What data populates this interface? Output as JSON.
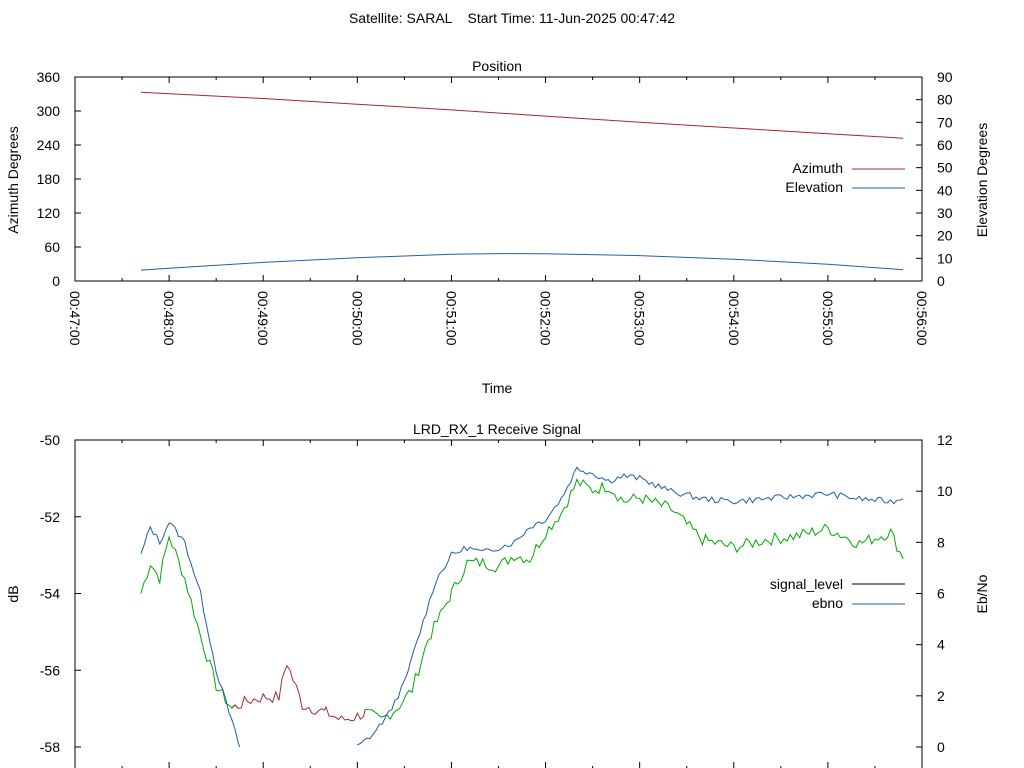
{
  "figure": {
    "title": "Satellite: SARAL    Start Time: 11-Jun-2025 00:47:42"
  },
  "colors": {
    "azimuth": "#a52a2a",
    "elevation": "#1f5fa8",
    "signal_level": "#000000",
    "ebno": "#1f5fa8",
    "signal_red": "#a52a2a",
    "signal_green": "#00aa00"
  },
  "chart_data": [
    {
      "type": "line",
      "title": "Position",
      "xlabel": "Time",
      "ylabel": "Azimuth Degrees",
      "y2label": "Elevation Degrees",
      "xlim": [
        "00:47:00",
        "00:56:00"
      ],
      "ylim": [
        0,
        360
      ],
      "y2lim": [
        0,
        90
      ],
      "x_ticks": [
        "00:47:00",
        "00:48:00",
        "00:49:00",
        "00:50:00",
        "00:51:00",
        "00:52:00",
        "00:53:00",
        "00:54:00",
        "00:55:00",
        "00:56:00"
      ],
      "y_ticks": [
        "0",
        "60",
        "120",
        "180",
        "240",
        "300",
        "360"
      ],
      "y2_ticks": [
        "0",
        "10",
        "20",
        "30",
        "40",
        "50",
        "60",
        "70",
        "80",
        "90"
      ],
      "legend_position": "right",
      "grid": false,
      "series": [
        {
          "name": "Azimuth",
          "axis": "y",
          "x": [
            "00:47:42",
            "00:49:00",
            "00:50:00",
            "00:51:00",
            "00:52:00",
            "00:53:00",
            "00:54:00",
            "00:55:00",
            "00:55:48"
          ],
          "values": [
            333,
            322,
            312,
            302,
            291,
            280,
            270,
            260,
            252
          ]
        },
        {
          "name": "Elevation",
          "axis": "y2",
          "x": [
            "00:47:42",
            "00:48:00",
            "00:49:00",
            "00:50:00",
            "00:51:00",
            "00:51:30",
            "00:52:00",
            "00:53:00",
            "00:54:00",
            "00:55:00",
            "00:55:48"
          ],
          "values": [
            4.8,
            5.6,
            8.2,
            10.3,
            11.8,
            12.1,
            12.0,
            11.2,
            9.6,
            7.4,
            5.0
          ]
        }
      ]
    },
    {
      "type": "line",
      "title": "LRD_RX_1 Receive Signal",
      "xlabel": "",
      "ylabel": "dB",
      "y2label": "Eb/No",
      "xlim": [
        "00:47:00",
        "00:56:00"
      ],
      "ylim": [
        -58,
        -50
      ],
      "y2lim": [
        0,
        12
      ],
      "y_ticks": [
        "-50",
        "-52",
        "-54",
        "-56",
        "-58"
      ],
      "y2_ticks": [
        "0",
        "2",
        "4",
        "6",
        "8",
        "10",
        "12"
      ],
      "legend_position": "right",
      "grid": false,
      "series": [
        {
          "name": "signal_level",
          "axis": "y",
          "x": [
            "00:47:42",
            "00:47:48",
            "00:47:54",
            "00:48:00",
            "00:48:10",
            "00:48:20",
            "00:48:30",
            "00:48:40",
            "00:48:50",
            "00:49:00",
            "00:49:10",
            "00:49:15",
            "00:49:25",
            "00:49:40",
            "00:49:50",
            "00:50:00",
            "00:50:05",
            "00:50:15",
            "00:50:25",
            "00:50:35",
            "00:50:45",
            "00:51:00",
            "00:51:10",
            "00:51:20",
            "00:51:30",
            "00:51:40",
            "00:51:50",
            "00:52:00",
            "00:52:10",
            "00:52:20",
            "00:52:30",
            "00:52:40",
            "00:52:50",
            "00:53:00",
            "00:53:20",
            "00:53:40",
            "00:54:00",
            "00:54:20",
            "00:54:40",
            "00:55:00",
            "00:55:20",
            "00:55:40",
            "00:55:48"
          ],
          "values": [
            -54.0,
            -53.2,
            -53.6,
            -52.5,
            -53.6,
            -55.1,
            -56.4,
            -57.0,
            -56.8,
            -56.7,
            -56.7,
            -55.8,
            -56.9,
            -57.1,
            -57.3,
            -57.2,
            -57.1,
            -57.3,
            -57.0,
            -56.5,
            -55.2,
            -54.0,
            -53.2,
            -53.2,
            -53.3,
            -53.0,
            -53.1,
            -52.4,
            -51.9,
            -51.1,
            -51.3,
            -51.2,
            -51.6,
            -51.5,
            -51.8,
            -52.6,
            -52.8,
            -52.6,
            -52.5,
            -52.3,
            -52.7,
            -52.4,
            -53.1
          ]
        },
        {
          "name": "ebno",
          "axis": "y2",
          "x": [
            "00:47:42",
            "00:47:48",
            "00:47:54",
            "00:48:00",
            "00:48:10",
            "00:48:20",
            "00:48:30",
            "00:48:40",
            "00:48:45",
            "00:50:00",
            "00:50:10",
            "00:50:20",
            "00:50:30",
            "00:50:40",
            "00:50:50",
            "00:51:00",
            "00:51:10",
            "00:51:20",
            "00:51:30",
            "00:51:40",
            "00:51:50",
            "00:52:00",
            "00:52:10",
            "00:52:20",
            "00:52:30",
            "00:52:40",
            "00:52:50",
            "00:53:00",
            "00:53:20",
            "00:53:40",
            "00:54:00",
            "00:54:20",
            "00:54:40",
            "00:55:00",
            "00:55:20",
            "00:55:40",
            "00:55:48"
          ],
          "values": [
            7.5,
            8.6,
            8.0,
            8.8,
            8.0,
            6.0,
            3.0,
            1.0,
            0.0,
            0.0,
            0.5,
            1.3,
            2.5,
            4.5,
            6.5,
            7.5,
            7.8,
            7.6,
            7.8,
            8.0,
            8.6,
            8.9,
            9.7,
            10.9,
            10.7,
            10.4,
            10.6,
            10.5,
            10.0,
            9.7,
            9.6,
            9.7,
            9.8,
            9.9,
            9.7,
            9.6,
            9.7
          ]
        }
      ]
    }
  ]
}
